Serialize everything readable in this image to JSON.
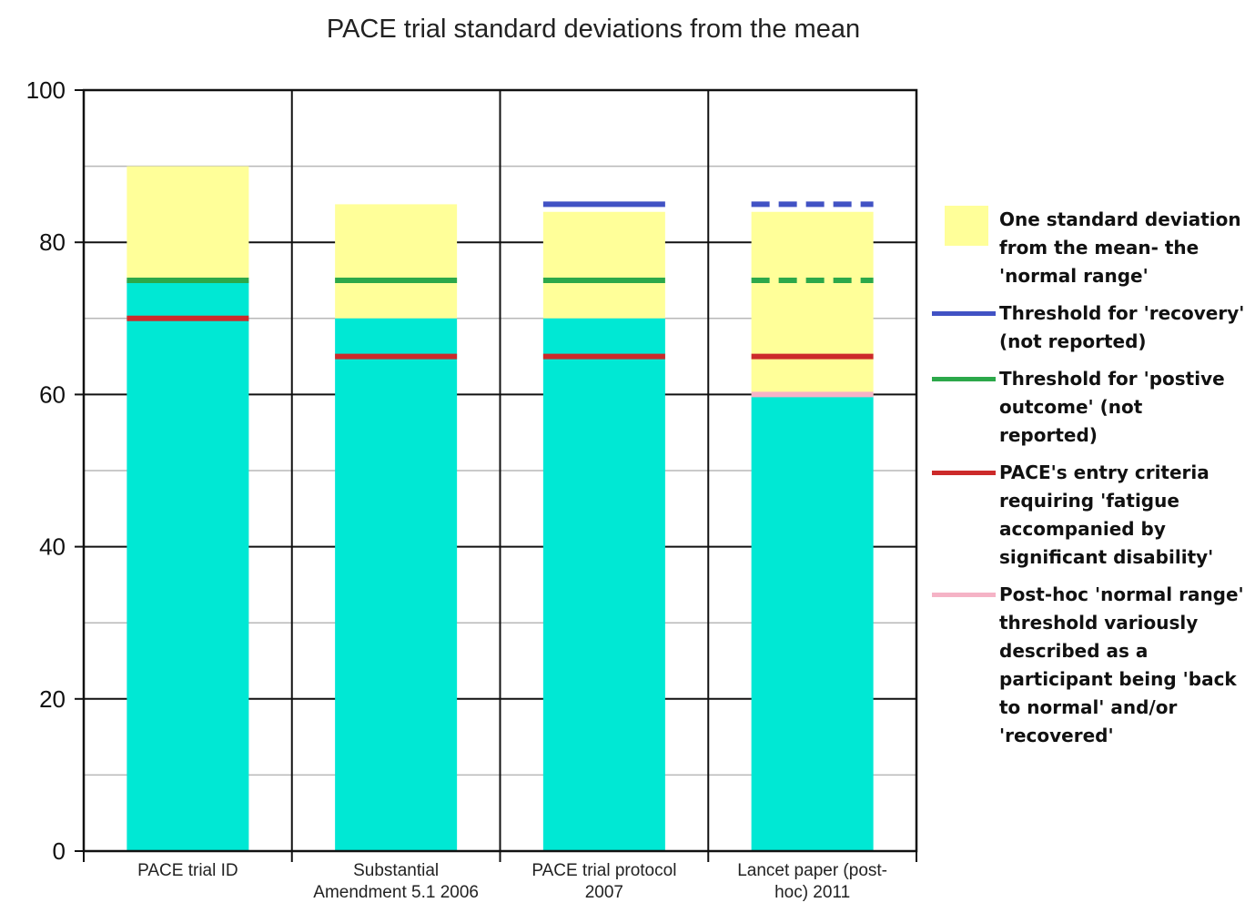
{
  "chart_data": {
    "type": "bar",
    "title": "PACE trial standard deviations from the mean",
    "xlabel": "",
    "ylabel": "",
    "ylim": [
      0,
      100
    ],
    "yticks": [
      0,
      20,
      40,
      60,
      80,
      100
    ],
    "grid": "on",
    "legend_position": "right",
    "categories": [
      "PACE trial ID",
      "Substantial Amendment 5.1 2006",
      "PACE trial protocol 2007",
      "Lancet paper (post-hoc) 2011"
    ],
    "category_labels": [
      [
        "PACE trial ID"
      ],
      [
        "Substantial",
        "Amendment 5.1 2006"
      ],
      [
        "PACE trial protocol",
        "2007"
      ],
      [
        "Lancet paper (post-",
        "hoc) 2011"
      ]
    ],
    "bars": [
      {
        "mean": 75,
        "sd_upper": 90
      },
      {
        "mean": 70,
        "sd_upper": 85
      },
      {
        "mean": 70,
        "sd_upper": 84
      },
      {
        "mean": 60,
        "sd_upper": 84
      }
    ],
    "thresholds": [
      {
        "name": "recovery",
        "color": "#4152c4",
        "values": [
          null,
          null,
          85,
          85
        ],
        "dashed": [
          false,
          false,
          false,
          true
        ]
      },
      {
        "name": "positive_outcome",
        "color": "#2ca84a",
        "values": [
          75,
          75,
          75,
          75
        ],
        "dashed": [
          false,
          false,
          false,
          true
        ]
      },
      {
        "name": "entry_criteria",
        "color": "#cc2a2a",
        "values": [
          70,
          65,
          65,
          65
        ],
        "dashed": [
          false,
          false,
          false,
          false
        ]
      },
      {
        "name": "posthoc_normal_range",
        "color": "#f5b3c6",
        "values": [
          null,
          null,
          null,
          60
        ],
        "dashed": [
          false,
          false,
          false,
          false
        ]
      }
    ],
    "legend": [
      {
        "kind": "box",
        "color": "#ffff99",
        "text": "One standard deviation from the mean- the 'normal range'"
      },
      {
        "kind": "line",
        "color": "#4152c4",
        "text": "Threshold for 'recovery' (not reported)"
      },
      {
        "kind": "line",
        "color": "#2ca84a",
        "text": "Threshold for 'postive outcome' (not reported)"
      },
      {
        "kind": "line",
        "color": "#cc2a2a",
        "text": "PACE's entry criteria requiring 'fatigue accompanied by significant disability'"
      },
      {
        "kind": "line",
        "color": "#f5b3c6",
        "text": "Post-hoc 'normal range' threshold variously described as a participant being 'back to normal' and/or 'recovered'"
      }
    ],
    "colors": {
      "mean_fill": "#00e8d4",
      "sd_fill": "#ffff99"
    }
  }
}
